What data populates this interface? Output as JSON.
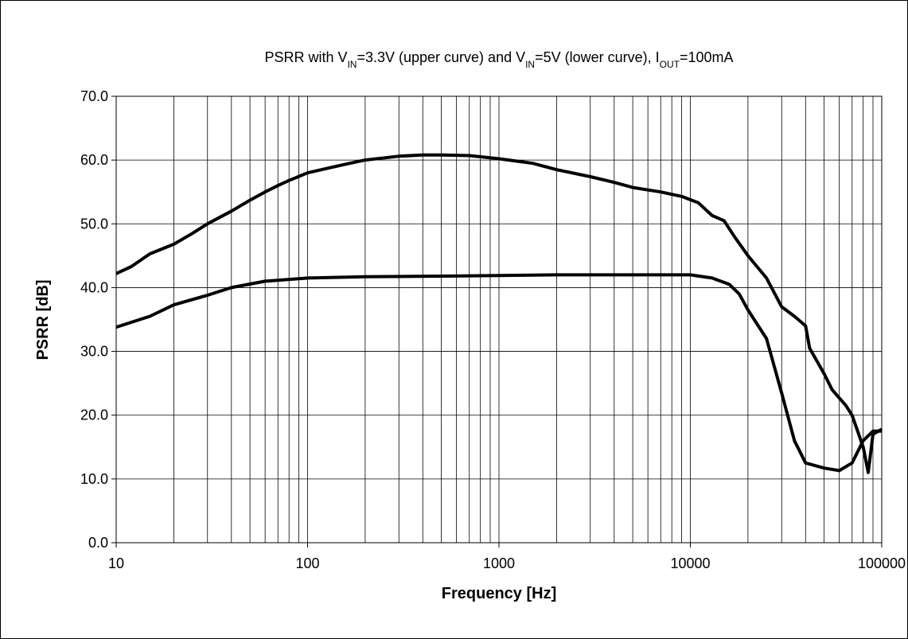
{
  "chart_data": {
    "type": "line",
    "title": [
      {
        "text": "PSRR with V"
      },
      {
        "text": "IN",
        "sub": true
      },
      {
        "text": "=3.3V (upper curve) and V"
      },
      {
        "text": "IN",
        "sub": true
      },
      {
        "text": "=5V (lower curve), I"
      },
      {
        "text": "OUT",
        "sub": true
      },
      {
        "text": "=100mA"
      }
    ],
    "xlabel": "Frequency [Hz]",
    "ylabel": "PSRR [dB]",
    "xscale": "log",
    "xlim": [
      10,
      100000
    ],
    "xticks": [
      10,
      100,
      1000,
      10000,
      100000
    ],
    "xminor": [
      20,
      30,
      40,
      50,
      60,
      70,
      80,
      90,
      200,
      300,
      400,
      500,
      600,
      700,
      800,
      900,
      2000,
      3000,
      4000,
      5000,
      6000,
      7000,
      8000,
      9000,
      20000,
      30000,
      40000,
      50000,
      60000,
      70000,
      80000,
      90000
    ],
    "ylim": [
      0,
      70
    ],
    "yticks": [
      {
        "value": 0,
        "label": "0.0"
      },
      {
        "value": 10,
        "label": "10.0"
      },
      {
        "value": 20,
        "label": "20.0"
      },
      {
        "value": 30,
        "label": "30.0"
      },
      {
        "value": 40,
        "label": "40.0"
      },
      {
        "value": 50,
        "label": "50.0"
      },
      {
        "value": 60,
        "label": "60.0"
      },
      {
        "value": 70,
        "label": "70.0"
      }
    ],
    "grid": true,
    "series": [
      {
        "color": "#000000",
        "x": [
          10,
          12,
          15,
          20,
          25,
          30,
          40,
          50,
          60,
          70,
          80,
          100,
          150,
          200,
          300,
          400,
          500,
          700,
          1000,
          1500,
          2000,
          3000,
          4000,
          5000,
          7000,
          9000,
          11000,
          13000,
          15000,
          17000,
          20000,
          25000,
          30000,
          35000,
          40000,
          42000,
          50000,
          55000,
          65000,
          70000,
          80000,
          85000,
          90000,
          100000
        ],
        "values": [
          42.2,
          43.3,
          45.3,
          46.8,
          48.5,
          50.0,
          52.0,
          53.7,
          55.0,
          56.0,
          56.8,
          58.0,
          59.2,
          60.0,
          60.6,
          60.8,
          60.8,
          60.7,
          60.2,
          59.5,
          58.5,
          57.4,
          56.5,
          55.7,
          55.0,
          54.3,
          53.3,
          51.3,
          50.5,
          48.0,
          45.0,
          41.5,
          37.0,
          35.5,
          34.0,
          30.5,
          26.5,
          24.0,
          21.5,
          20.0,
          15.0,
          11.0,
          17.0,
          17.8
        ]
      },
      {
        "color": "#000000",
        "x": [
          10,
          15,
          20,
          30,
          40,
          60,
          100,
          200,
          500,
          1000,
          2000,
          5000,
          10000,
          13000,
          16000,
          18000,
          20000,
          25000,
          30000,
          35000,
          40000,
          50000,
          60000,
          70000,
          80000,
          90000,
          100000
        ],
        "values": [
          33.8,
          35.5,
          37.3,
          38.8,
          40.0,
          41.0,
          41.5,
          41.7,
          41.8,
          41.9,
          42.0,
          42.0,
          42.0,
          41.5,
          40.5,
          39.0,
          36.5,
          32.0,
          23.5,
          16.0,
          12.5,
          11.7,
          11.3,
          12.5,
          16.0,
          17.5,
          17.5
        ]
      }
    ]
  }
}
